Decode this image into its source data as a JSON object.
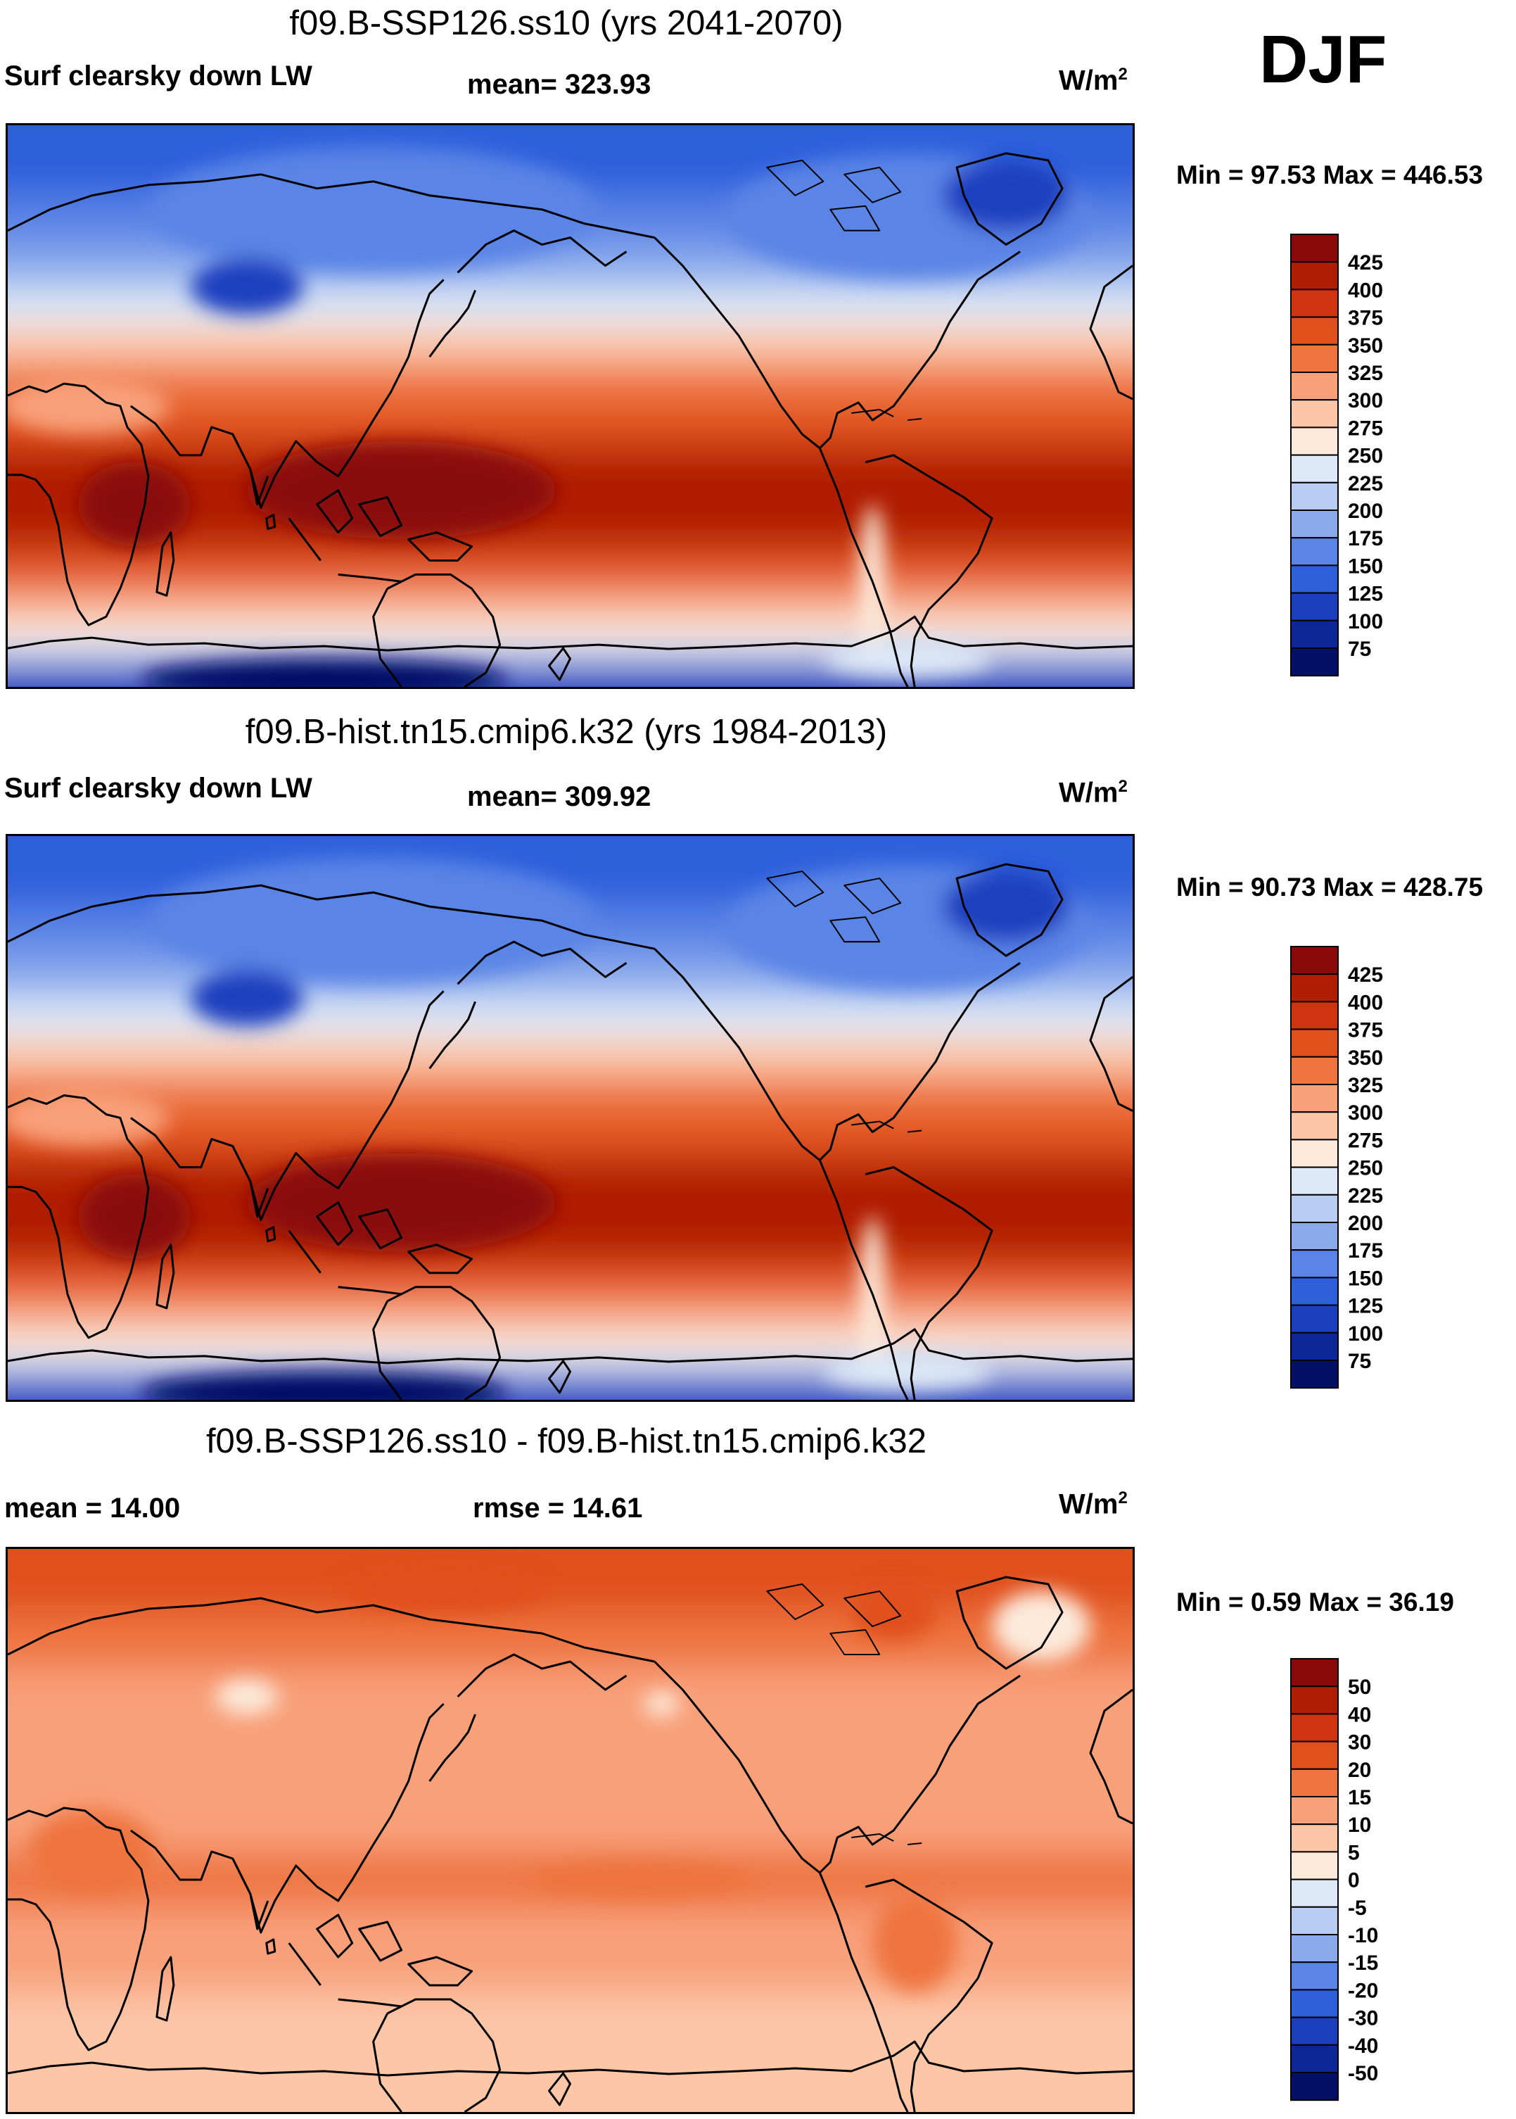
{
  "season": "DJF",
  "panels": [
    {
      "title": "f09.B-SSP126.ss10 (yrs 2041-2070)",
      "left_label": "Surf clearsky down LW",
      "center_label": "mean= 323.93",
      "units": "W/m",
      "units_exp": "2",
      "minmax": "Min =  97.53 Max = 446.53",
      "map_kind": "absolute",
      "colorbar": {
        "levels": [
          "425",
          "400",
          "375",
          "350",
          "325",
          "300",
          "275",
          "250",
          "225",
          "200",
          "175",
          "150",
          "125",
          "100",
          "75"
        ],
        "colors": [
          "#8a0a0a",
          "#b01e06",
          "#cf3410",
          "#e0501c",
          "#ee7440",
          "#f8a07a",
          "#fcc6a7",
          "#fdeadb",
          "#dde9f8",
          "#b7cdf2",
          "#8aaaec",
          "#5a84e6",
          "#2f5fdb",
          "#1a3fbf",
          "#0d2796",
          "#040f66"
        ]
      }
    },
    {
      "title": "f09.B-hist.tn15.cmip6.k32 (yrs 1984-2013)",
      "left_label": "Surf clearsky down LW",
      "center_label": "mean= 309.92",
      "units": "W/m",
      "units_exp": "2",
      "minmax": "Min =  90.73 Max = 428.75",
      "map_kind": "absolute",
      "colorbar": {
        "levels": [
          "425",
          "400",
          "375",
          "350",
          "325",
          "300",
          "275",
          "250",
          "225",
          "200",
          "175",
          "150",
          "125",
          "100",
          "75"
        ],
        "colors": [
          "#8a0a0a",
          "#b01e06",
          "#cf3410",
          "#e0501c",
          "#ee7440",
          "#f8a07a",
          "#fcc6a7",
          "#fdeadb",
          "#dde9f8",
          "#b7cdf2",
          "#8aaaec",
          "#5a84e6",
          "#2f5fdb",
          "#1a3fbf",
          "#0d2796",
          "#040f66"
        ]
      }
    },
    {
      "title": "f09.B-SSP126.ss10 - f09.B-hist.tn15.cmip6.k32",
      "left_label": "mean =  14.00",
      "center_label": "rmse =  14.61",
      "units": "W/m",
      "units_exp": "2",
      "minmax": "Min =   0.59 Max =  36.19",
      "map_kind": "difference",
      "colorbar": {
        "levels": [
          "50",
          "40",
          "30",
          "20",
          "15",
          "10",
          "5",
          "0",
          "-5",
          "-10",
          "-15",
          "-20",
          "-30",
          "-40",
          "-50"
        ],
        "colors": [
          "#8a0a0a",
          "#b01e06",
          "#cf3410",
          "#e0501c",
          "#ee7440",
          "#f8a07a",
          "#fcc6a7",
          "#fdeadb",
          "#dde9f8",
          "#b7cdf2",
          "#8aaaec",
          "#5a84e6",
          "#2f5fdb",
          "#1a3fbf",
          "#0d2796",
          "#040f66"
        ]
      }
    }
  ]
}
